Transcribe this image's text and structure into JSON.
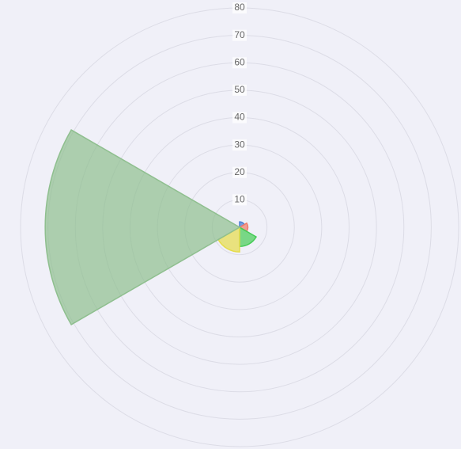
{
  "chart_data": {
    "type": "polarArea",
    "values": [
      2,
      3,
      7,
      9,
      71,
      0
    ],
    "colors": [
      "#4a7fd4",
      "#f07a6a",
      "#44cc55",
      "#e6dc4a",
      "#8fbf8f",
      "#b0a0d0"
    ],
    "rlim": [
      0,
      80
    ],
    "rticks": [
      10,
      20,
      30,
      40,
      50,
      60,
      70,
      80
    ],
    "grid": true
  }
}
